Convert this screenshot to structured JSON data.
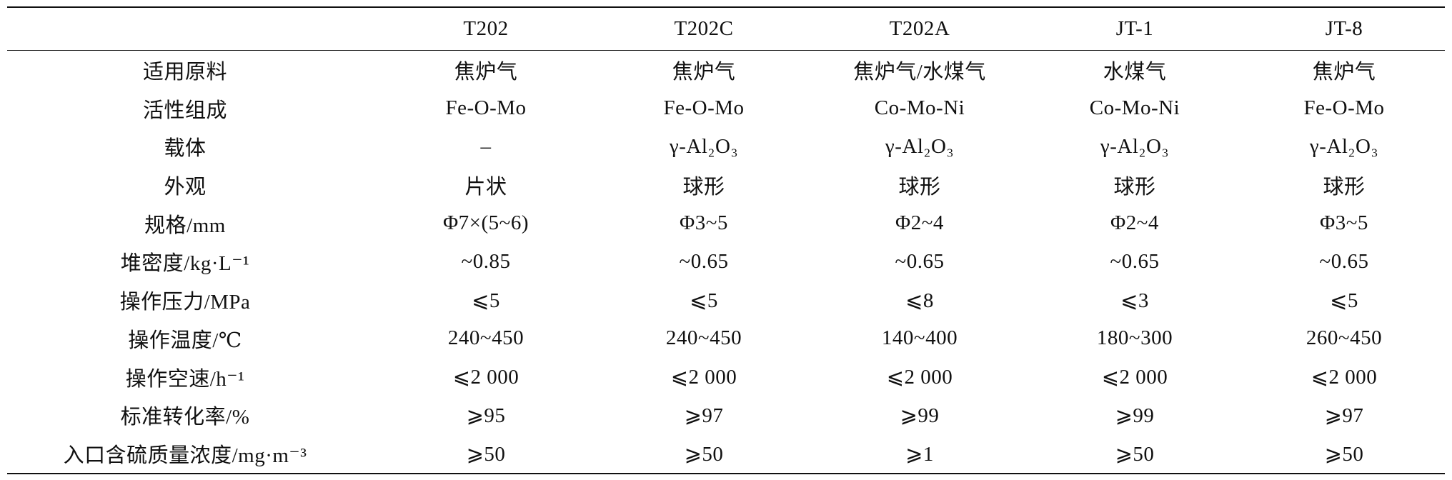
{
  "table": {
    "columns": [
      "T202",
      "T202C",
      "T202A",
      "JT-1",
      "JT-8"
    ],
    "rows": [
      {
        "label": "适用原料",
        "values": [
          "焦炉气",
          "焦炉气",
          "焦炉气/水煤气",
          "水煤气",
          "焦炉气"
        ]
      },
      {
        "label": "活性组成",
        "values": [
          "Fe-O-Mo",
          "Fe-O-Mo",
          "Co-Mo-Ni",
          "Co-Mo-Ni",
          "Fe-O-Mo"
        ]
      },
      {
        "label": "载体",
        "values": [
          "–",
          "γ-Al₂O₃",
          "γ-Al₂O₃",
          "γ-Al₂O₃",
          "γ-Al₂O₃"
        ]
      },
      {
        "label": "外观",
        "values": [
          "片状",
          "球形",
          "球形",
          "球形",
          "球形"
        ]
      },
      {
        "label": "规格/mm",
        "values": [
          "Φ7×(5~6)",
          "Φ3~5",
          "Φ2~4",
          "Φ2~4",
          "Φ3~5"
        ]
      },
      {
        "label": "堆密度/kg·L⁻¹",
        "values": [
          "~0.85",
          "~0.65",
          "~0.65",
          "~0.65",
          "~0.65"
        ]
      },
      {
        "label": "操作压力/MPa",
        "values": [
          "⩽5",
          "⩽5",
          "⩽8",
          "⩽3",
          "⩽5"
        ]
      },
      {
        "label": "操作温度/℃",
        "values": [
          "240~450",
          "240~450",
          "140~400",
          "180~300",
          "260~450"
        ]
      },
      {
        "label": "操作空速/h⁻¹",
        "values": [
          "⩽2 000",
          "⩽2 000",
          "⩽2 000",
          "⩽2 000",
          "⩽2 000"
        ]
      },
      {
        "label": "标准转化率/%",
        "values": [
          "⩾95",
          "⩾97",
          "⩾99",
          "⩾99",
          "⩾97"
        ]
      },
      {
        "label": "入口含硫质量浓度/mg·m⁻³",
        "values": [
          "⩾50",
          "⩾50",
          "⩾1",
          "⩾50",
          "⩾50"
        ]
      }
    ]
  }
}
